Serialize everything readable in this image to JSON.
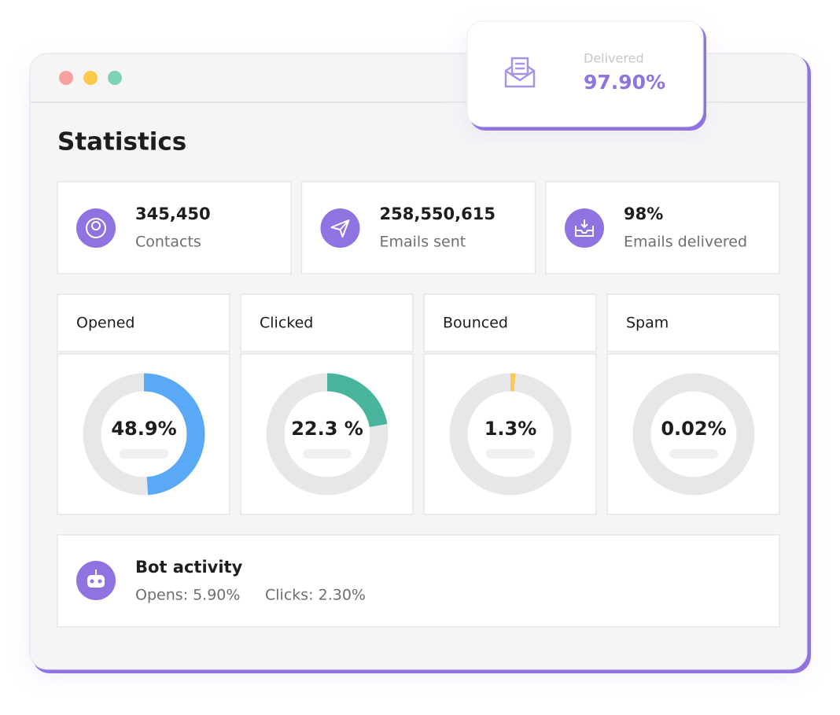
{
  "window": {
    "title": "Statistics"
  },
  "badge": {
    "label": "Delivered",
    "value": "97.90%"
  },
  "stats": [
    {
      "value": "345,450",
      "label": "Contacts"
    },
    {
      "value": "258,550,615",
      "label": "Emails sent"
    },
    {
      "value": "98%",
      "label": "Emails delivered"
    }
  ],
  "rates": [
    {
      "name": "Opened",
      "value": 48.9,
      "label": "48.9%",
      "color": "#5aa9f7"
    },
    {
      "name": "Clicked",
      "value": 22.3,
      "label": "22.3 %",
      "color": "#48b49c"
    },
    {
      "name": "Bounced",
      "value": 1.3,
      "label": "1.3%",
      "color": "#fcc94b"
    },
    {
      "name": "Spam",
      "value": 0.02,
      "label": "0.02%",
      "color": "#e8a3a3"
    }
  ],
  "bot": {
    "title": "Bot activity",
    "opens": "Opens: 5.90%",
    "clicks": "Clicks: 2.30%"
  }
}
